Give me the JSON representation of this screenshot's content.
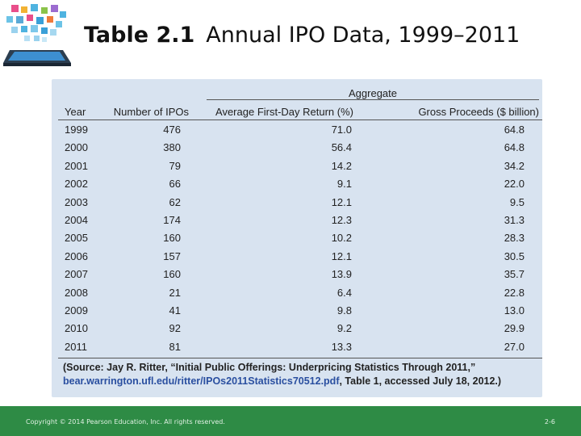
{
  "slide": {
    "title_number": "Table 2.1",
    "title_text": "Annual IPO Data, 1999–2011",
    "logo_icon": "tablet-with-app-icons-icon"
  },
  "table": {
    "group_header": "Aggregate",
    "columns": [
      "Year",
      "Number of IPOs",
      "Average First-Day Return (%)",
      "Gross Proceeds ($ billion)"
    ],
    "rows": [
      [
        "1999",
        "476",
        "71.0",
        "64.8"
      ],
      [
        "2000",
        "380",
        "56.4",
        "64.8"
      ],
      [
        "2001",
        "79",
        "14.2",
        "34.2"
      ],
      [
        "2002",
        "66",
        "9.1",
        "22.0"
      ],
      [
        "2003",
        "62",
        "12.1",
        "9.5"
      ],
      [
        "2004",
        "174",
        "12.3",
        "31.3"
      ],
      [
        "2005",
        "160",
        "10.2",
        "28.3"
      ],
      [
        "2006",
        "157",
        "12.1",
        "30.5"
      ],
      [
        "2007",
        "160",
        "13.9",
        "35.7"
      ],
      [
        "2008",
        "21",
        "6.4",
        "22.8"
      ],
      [
        "2009",
        "41",
        "9.8",
        "13.0"
      ],
      [
        "2010",
        "92",
        "9.2",
        "29.9"
      ],
      [
        "2011",
        "81",
        "13.3",
        "27.0"
      ]
    ],
    "source_line1": "(Source: Jay R. Ritter, “Initial Public Offerings: Underpricing Statistics Through 2011,”",
    "source_link": "bear.warrington.ufl.edu/ritter/IPOs2011Statistics70512.pdf",
    "source_line2_rest": ", Table 1, accessed July 18, 2012.)"
  },
  "footer": {
    "copyright": "Copyright © 2014 Pearson Education, Inc. All rights reserved.",
    "page_number": "2-6"
  },
  "colors": {
    "panel": "#d8e3f0",
    "footer": "#2e8b45",
    "link": "#2a4fa0"
  }
}
